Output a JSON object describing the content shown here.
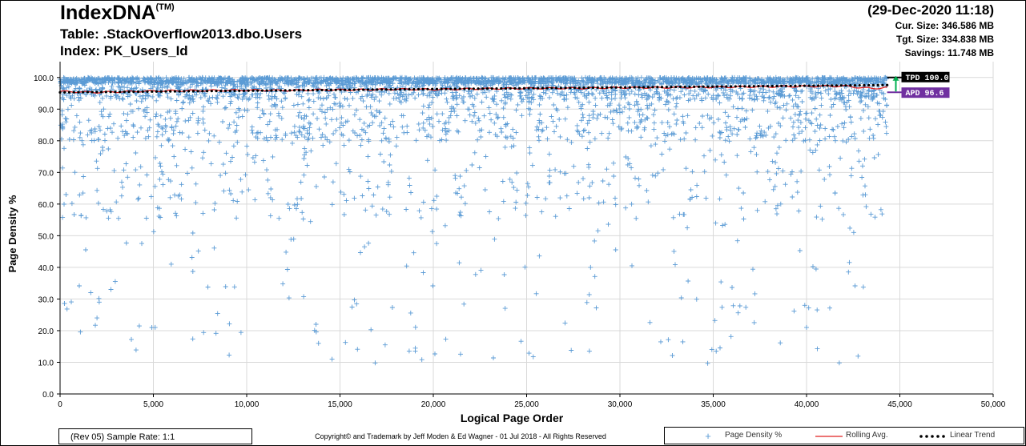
{
  "header": {
    "title": "IndexDNA",
    "trademark": "(TM)",
    "table": "Table: .StackOverflow2013.dbo.Users",
    "index": "Index: PK_Users_Id",
    "timestamp": "(29-Dec-2020 11:18)",
    "stats": [
      "Cur. Size: 346.586  MB",
      "Tgt. Size: 334.838  MB",
      "Savings: 11.748  MB"
    ]
  },
  "footer": {
    "sample_rate": "(Rev 05) Sample Rate: 1:1",
    "copyright": "Copyright©  and Trademark by Jeff Moden & Ed Wagner - 01 Jul 2018 - All Rights Reserved"
  },
  "colors": {
    "points": "#5b9bd5",
    "rolling": "#e02020",
    "trend": "#000000",
    "tpd_box": "#000000",
    "apd_box": "#7030a0",
    "arrow": "#00b050",
    "grid": "#d9d9d9"
  },
  "chart_data": {
    "type": "scatter",
    "xlabel": "Logical Page Order",
    "ylabel": "Page Density %",
    "xlim": [
      0,
      50000
    ],
    "ylim": [
      0,
      105
    ],
    "x_ticks": [
      "0",
      "5,000",
      "10,000",
      "15,000",
      "20,000",
      "25,000",
      "30,000",
      "35,000",
      "40,000",
      "45,000",
      "50,000"
    ],
    "y_ticks": [
      "0.0",
      "10.0",
      "20.0",
      "30.0",
      "40.0",
      "50.0",
      "60.0",
      "70.0",
      "80.0",
      "90.0",
      "100.0"
    ],
    "grid": true,
    "point_count": 44320,
    "series": [
      {
        "name": "Page Density %",
        "kind": "scatter-plus",
        "x_range": [
          0,
          44320
        ],
        "y_range": [
          9.3,
          100.0
        ],
        "typical": 99.5
      },
      {
        "name": "Rolling Avg.",
        "kind": "line",
        "x": [
          0,
          2000,
          4000,
          6000,
          8000,
          10000,
          12000,
          14000,
          16000,
          18000,
          20000,
          22000,
          24000,
          26000,
          28000,
          30000,
          32000,
          34000,
          36000,
          38000,
          40000,
          42000,
          43500,
          44320
        ],
        "y": [
          95.6,
          95.3,
          95.6,
          95.8,
          95.9,
          96.0,
          95.9,
          96.1,
          96.1,
          96.3,
          96.2,
          96.4,
          96.5,
          96.6,
          96.6,
          96.8,
          96.8,
          96.9,
          97.0,
          97.1,
          97.2,
          97.3,
          96.5,
          96.9
        ]
      },
      {
        "name": "Linear Trend",
        "kind": "dotted-line",
        "x": [
          0,
          44320
        ],
        "y": [
          95.3,
          97.6
        ]
      }
    ],
    "annotations": [
      {
        "label": "TPD 100.0",
        "value": 100.0
      },
      {
        "label": "APD 96.6",
        "value": 96.6
      }
    ],
    "legend_position": "bottom-right"
  }
}
